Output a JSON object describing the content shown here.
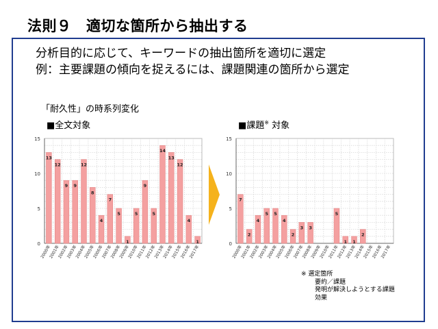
{
  "page": {
    "title": "法則９　適切な箇所から抽出する",
    "intro_line1": "分析目的に応じて、キーワードの抽出箇所を適切に選定",
    "intro_line2": "例：主要課題の傾向を捉えるには、課題関連の箇所から選定",
    "subtitle": "「耐久性」の時系列変化",
    "left_label": "■全文対象",
    "right_label_main": "■課題",
    "right_label_sup": "※",
    "right_label_tail": " 対象",
    "note_header": "※ 選定箇所",
    "note_items": [
      "要約／課題",
      "発明が解決しようとする課題",
      "効果"
    ],
    "bar_color": "#f4a0a0",
    "arrow_color": "#f5b21c"
  },
  "chart_data": [
    {
      "type": "bar",
      "title": "■全文対象",
      "categories": [
        "2000年",
        "2001年",
        "2002年",
        "2003年",
        "2004年",
        "2005年",
        "2006年",
        "2007年",
        "2008年",
        "2009年",
        "2010年",
        "2011年",
        "2012年",
        "2013年",
        "2014年",
        "2015年",
        "2016年",
        "2017年"
      ],
      "values": [
        13,
        12,
        9,
        9,
        12,
        8,
        4,
        7,
        5,
        1,
        5,
        9,
        5,
        14,
        13,
        12,
        4,
        1
      ],
      "ylim": [
        0,
        15
      ],
      "yticks": [
        0,
        5,
        10,
        15
      ],
      "grid": true
    },
    {
      "type": "bar",
      "title": "■課題※ 対象",
      "categories": [
        "2000年",
        "2001年",
        "2002年",
        "2003年",
        "2004年",
        "2005年",
        "2006年",
        "2007年",
        "2008年",
        "2009年",
        "2010年",
        "2011年",
        "2012年",
        "2013年",
        "2014年",
        "2015年",
        "2016年",
        "2017年"
      ],
      "values": [
        7,
        2,
        4,
        5,
        5,
        4,
        2,
        3,
        3,
        0,
        0,
        5,
        1,
        1,
        2,
        0,
        0,
        0
      ],
      "ylim": [
        0,
        15
      ],
      "yticks": [
        0,
        5,
        10,
        15
      ],
      "grid": true
    }
  ]
}
